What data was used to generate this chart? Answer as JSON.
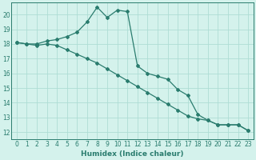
{
  "line1_x": [
    0,
    1,
    2,
    3,
    4,
    5,
    6,
    7,
    8,
    9,
    10,
    11,
    12,
    13,
    14,
    15,
    16,
    17,
    18,
    19,
    20,
    21,
    22,
    23
  ],
  "line1_y": [
    18.1,
    18.0,
    18.0,
    18.2,
    18.3,
    18.5,
    18.8,
    19.5,
    20.5,
    19.8,
    20.3,
    20.2,
    16.5,
    16.0,
    15.8,
    15.6,
    14.9,
    14.5,
    13.2,
    12.8,
    12.5,
    12.5,
    12.5,
    12.1
  ],
  "line2_x": [
    0,
    1,
    2,
    3,
    4,
    5,
    6,
    7,
    8,
    9,
    10,
    11,
    12,
    13,
    14,
    15,
    16,
    17,
    18,
    19,
    20,
    21,
    22,
    23
  ],
  "line2_y": [
    18.1,
    18.0,
    17.9,
    18.0,
    17.9,
    17.6,
    17.3,
    17.0,
    16.7,
    16.3,
    15.9,
    15.5,
    15.1,
    14.7,
    14.3,
    13.9,
    13.5,
    13.1,
    12.9,
    12.8,
    12.5,
    12.5,
    12.5,
    12.1
  ],
  "line_color": "#2a7c6e",
  "bg_color": "#d4f2ec",
  "grid_color": "#aeddd5",
  "xlabel": "Humidex (Indice chaleur)",
  "xlim": [
    -0.5,
    23.5
  ],
  "ylim": [
    11.5,
    20.8
  ],
  "yticks": [
    12,
    13,
    14,
    15,
    16,
    17,
    18,
    19,
    20
  ],
  "xticks": [
    0,
    1,
    2,
    3,
    4,
    5,
    6,
    7,
    8,
    9,
    10,
    11,
    12,
    13,
    14,
    15,
    16,
    17,
    18,
    19,
    20,
    21,
    22,
    23
  ],
  "xlabel_fontsize": 6.5,
  "tick_fontsize": 5.5
}
